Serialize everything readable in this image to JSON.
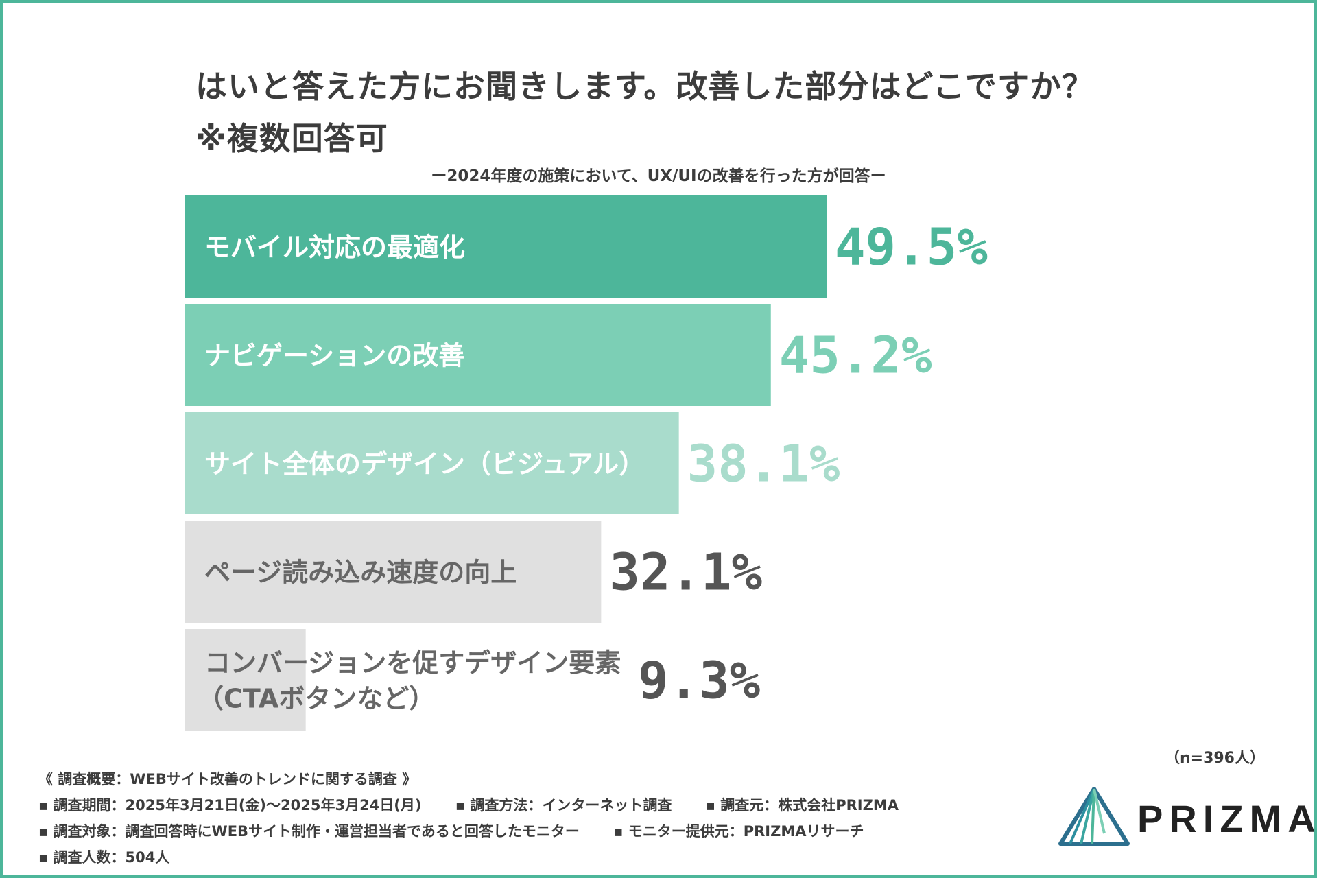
{
  "title": {
    "line1": "はいと答えた方にお聞きします。改善した部分はどこですか？",
    "line2": "※複数回答可"
  },
  "subtitle": "ー2024年度の施策において、UX/UIの改善を行った方が回答ー",
  "sample_note": "（n=396人）",
  "chart_data": {
    "type": "bar",
    "orientation": "horizontal",
    "title": "はいと答えた方にお聞きします。改善した部分はどこですか？※複数回答可",
    "categories": [
      "モバイル対応の最適化",
      "ナビゲーションの改善",
      "サイト全体のデザイン（ビジュアル）",
      "ページ読み込み速度の向上",
      [
        "コンバージョンを促すデザイン要素",
        "（CTAボタンなど）"
      ]
    ],
    "values": [
      49.5,
      45.2,
      38.1,
      32.1,
      9.3
    ],
    "value_labels": [
      "49.5%",
      "45.2%",
      "38.1%",
      "32.1%",
      "9.3%"
    ],
    "unit": "%",
    "xlim": [
      0,
      60
    ],
    "colors": [
      "#4db69a",
      "#7ccfb5",
      "#a9dccc",
      "#e0e0e0",
      "#e0e0e0"
    ],
    "label_colors": [
      "#ffffff",
      "#ffffff",
      "#ffffff",
      "#666666",
      "#666666"
    ],
    "value_colors": [
      "#4db69a",
      "#7ccfb5",
      "#a9dccc",
      "#555555",
      "#555555"
    ]
  },
  "footer": {
    "overview": "《 調査概要：WEBサイト改善のトレンドに関する調査 》",
    "period": "▪ 調査期間：2025年3月21日(金)〜2025年3月24日(月)",
    "method": "▪ 調査方法：インターネット調査",
    "source": "▪ 調査元：株式会社PRIZMA",
    "target": "▪ 調査対象：調査回答時にWEBサイト制作・運営担当者であると回答したモニター",
    "provider": "▪ モニター提供元：PRIZMAリサーチ",
    "count": "▪ 調査人数：504人"
  },
  "logo": {
    "text": "PRIZMA",
    "icon": "prism-triangle-icon"
  }
}
